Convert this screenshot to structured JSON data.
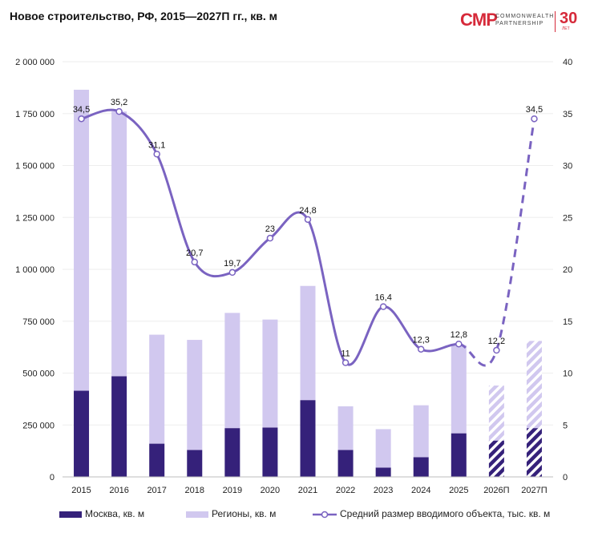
{
  "header": {
    "title": "Новое строительство, РФ, 2015—2027П гг., кв. м",
    "logo_mark": "CMP",
    "logo_line1": "COMMONWEALTH",
    "logo_line2": "PARTNERSHIP",
    "logo_years": "30",
    "logo_years_sub": "ЛЕТ"
  },
  "colors": {
    "moscow": "#35217a",
    "regions": "#d1c8ef",
    "line": "#7a63c1",
    "brand": "#d62a3a"
  },
  "chart_data": {
    "type": "bar",
    "stacked": true,
    "categories": [
      "2015",
      "2016",
      "2017",
      "2018",
      "2019",
      "2020",
      "2021",
      "2022",
      "2023",
      "2024",
      "2025",
      "2026П",
      "2027П"
    ],
    "forecast_from_index": 11,
    "series": [
      {
        "name": "Москва, кв. м",
        "axis": "left",
        "values": [
          415000,
          485000,
          160000,
          130000,
          235000,
          238000,
          370000,
          130000,
          45000,
          95000,
          210000,
          175000,
          235000
        ]
      },
      {
        "name": "Регионы, кв. м",
        "axis": "left",
        "values": [
          1450000,
          1275000,
          525000,
          530000,
          555000,
          520000,
          550000,
          210000,
          185000,
          250000,
          425000,
          265000,
          420000
        ]
      },
      {
        "name": "Средний размер вводимого объекта, тыс. кв. м",
        "axis": "right",
        "type": "line",
        "values": [
          34.5,
          35.2,
          31.1,
          20.7,
          19.7,
          23,
          24.8,
          11,
          16.4,
          12.3,
          12.8,
          12.2,
          34.5
        ],
        "labels": [
          "34,5",
          "35,2",
          "31,1",
          "20,7",
          "19,7",
          "23",
          "24,8",
          "11",
          "16,4",
          "12,3",
          "12,8",
          "12,2",
          "34,5"
        ]
      }
    ],
    "yleft": {
      "min": 0,
      "max": 2000000,
      "ticks": [
        "0",
        "250 000",
        "500 000",
        "750 000",
        "1 000 000",
        "1 250 000",
        "1 500 000",
        "1 750 000",
        "2 000 000"
      ]
    },
    "yright": {
      "min": 0,
      "max": 40,
      "ticks": [
        "0",
        "5",
        "10",
        "15",
        "20",
        "25",
        "30",
        "35",
        "40"
      ]
    },
    "legend_position": "bottom",
    "grid": true
  }
}
